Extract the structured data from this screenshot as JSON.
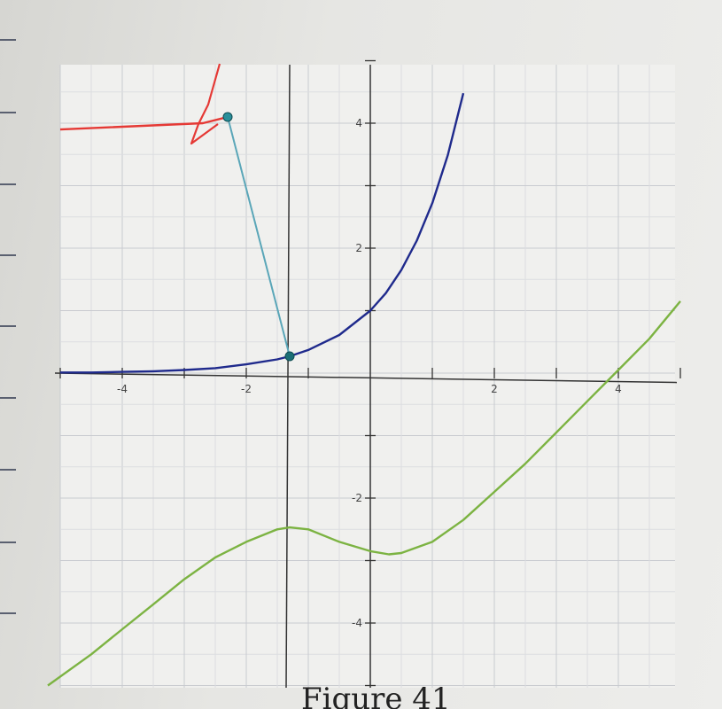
{
  "chart_data": {
    "type": "line",
    "title": "",
    "xlabel": "",
    "ylabel": "",
    "xlim": [
      -5,
      5
    ],
    "ylim": [
      -5,
      5
    ],
    "grid": true,
    "x_ticks": [
      -4,
      -2,
      2,
      4
    ],
    "y_ticks": [
      -4,
      -2,
      2,
      4
    ],
    "vertical_line_x": -1.3,
    "series": [
      {
        "color": "#1f2a8c",
        "x": [
          -5,
          -4.5,
          -4,
          -3.5,
          -3,
          -2.5,
          -2,
          -1.5,
          -1.3,
          -1,
          -0.5,
          0,
          0.25,
          0.5,
          0.75,
          1,
          1.25,
          1.5
        ],
        "y": [
          0.01,
          0.01,
          0.02,
          0.03,
          0.05,
          0.08,
          0.14,
          0.22,
          0.27,
          0.37,
          0.61,
          1.0,
          1.28,
          1.65,
          2.12,
          2.72,
          3.49,
          4.48
        ]
      },
      {
        "color": "#7cb342",
        "x": [
          -5.2,
          -4.5,
          -4,
          -3.5,
          -3,
          -2.5,
          -2,
          -1.5,
          -1.3,
          -1,
          -0.5,
          0,
          0.3,
          0.5,
          1,
          1.5,
          2,
          2.5,
          3,
          3.5,
          4,
          4.5,
          5
        ],
        "y": [
          -5.0,
          -4.5,
          -4.1,
          -3.7,
          -3.3,
          -2.95,
          -2.7,
          -2.5,
          -2.47,
          -2.5,
          -2.7,
          -2.85,
          -2.9,
          -2.88,
          -2.7,
          -2.35,
          -1.9,
          -1.45,
          -0.95,
          -0.45,
          0.05,
          0.55,
          1.15
        ]
      },
      {
        "color": "#5aa6b8",
        "x": [
          -2.3,
          -1.3
        ],
        "y": [
          4.1,
          0.27
        ]
      },
      {
        "color": "#e53935",
        "x": [
          -5,
          -2.7,
          -2.3
        ],
        "y": [
          3.9,
          4.0,
          4.1
        ]
      }
    ],
    "points": [
      {
        "x": -2.3,
        "y": 4.1,
        "color": "#2a8f9a"
      },
      {
        "x": -1.3,
        "y": 0.27,
        "color": "#1b6e75"
      }
    ]
  },
  "caption": "Figure 41"
}
